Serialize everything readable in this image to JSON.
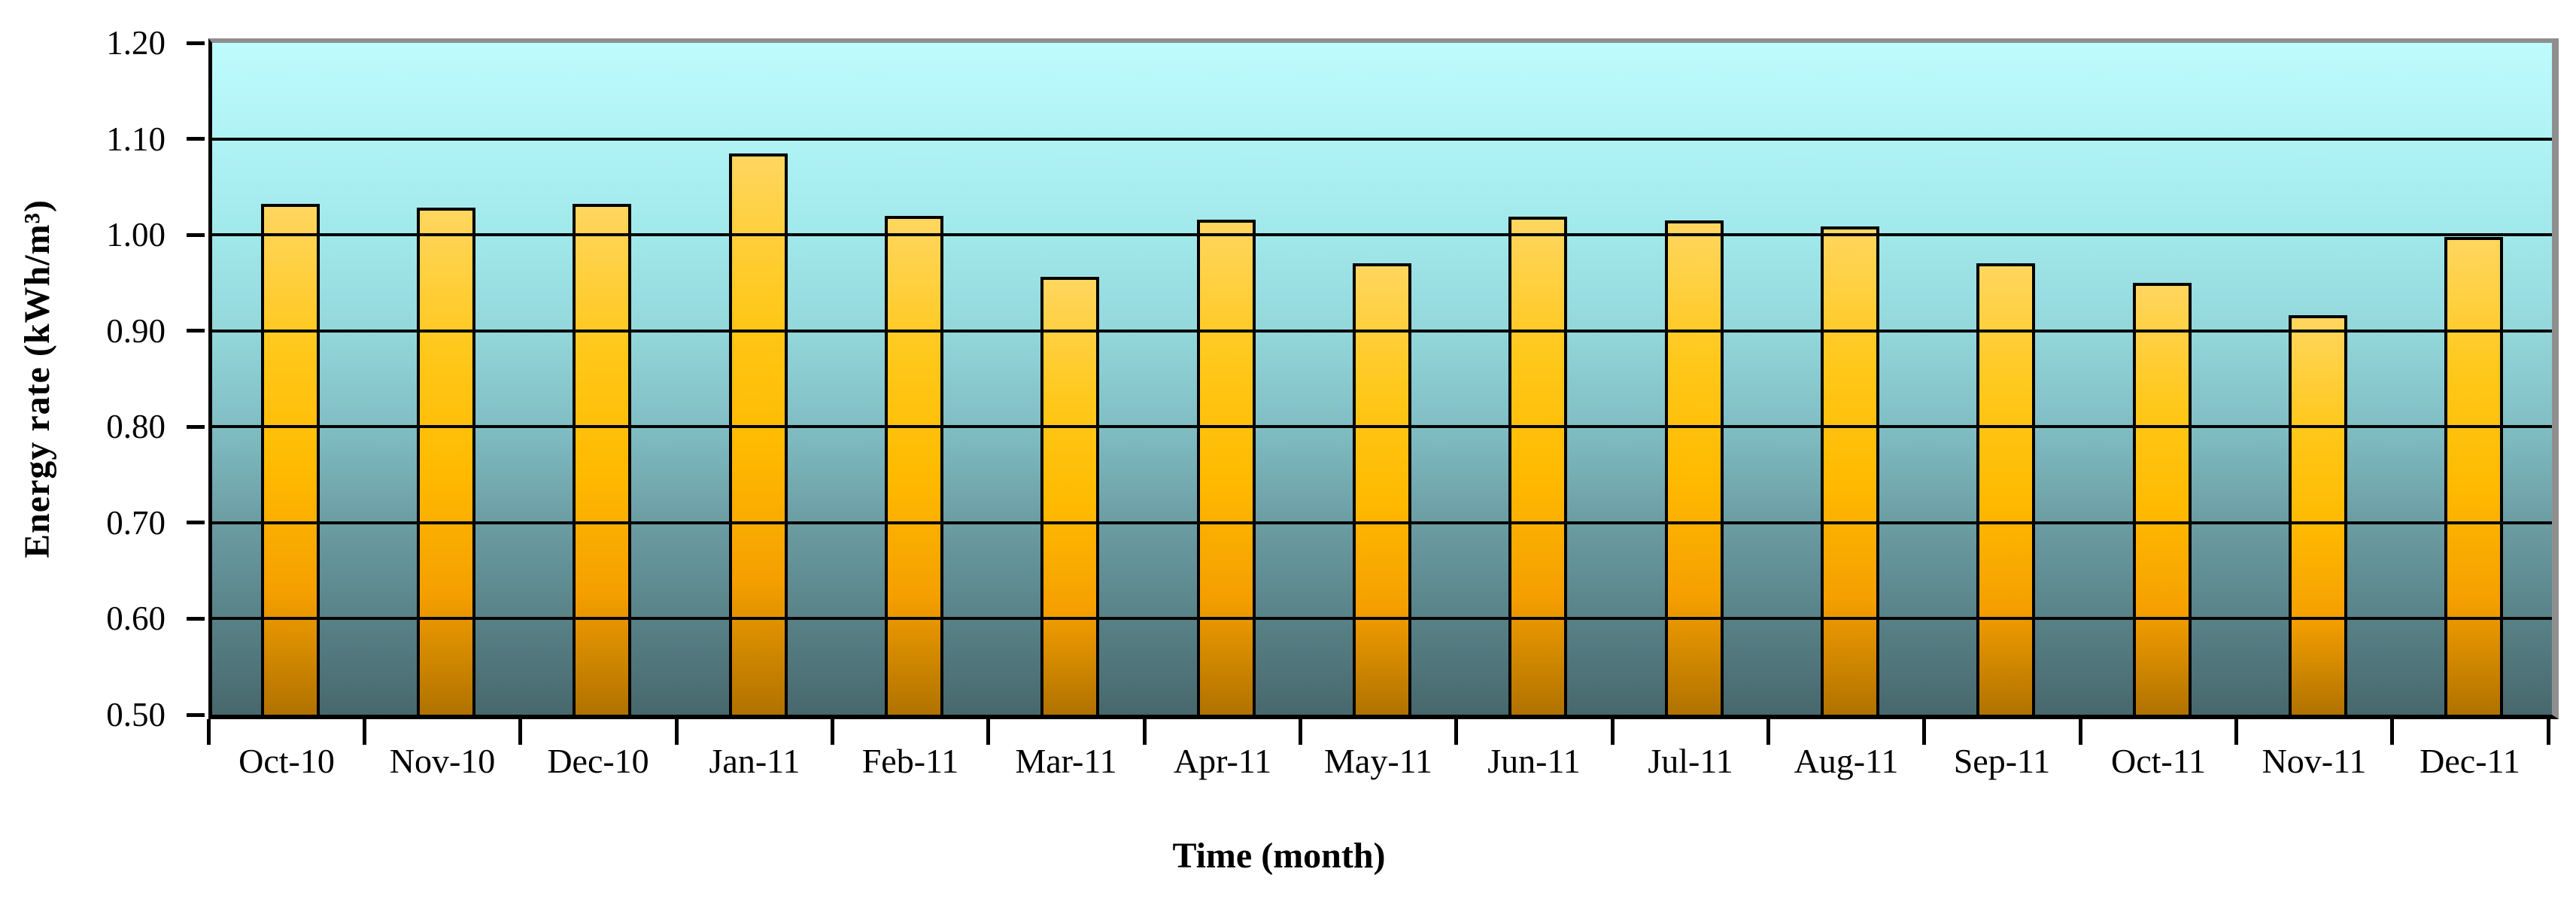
{
  "chart_data": {
    "type": "bar",
    "title": "",
    "xlabel": "Time (month)",
    "ylabel": "Energy rate (kWh/m³)",
    "categories": [
      "Oct-10",
      "Nov-10",
      "Dec-10",
      "Jan-11",
      "Feb-11",
      "Mar-11",
      "Apr-11",
      "May-11",
      "Jun-11",
      "Jul-11",
      "Aug-11",
      "Sep-11",
      "Oct-11",
      "Nov-11",
      "Dec-11"
    ],
    "values": [
      1.032,
      1.028,
      1.032,
      1.085,
      1.02,
      0.956,
      1.016,
      0.97,
      1.019,
      1.015,
      1.009,
      0.97,
      0.95,
      0.916,
      0.998
    ],
    "ylim": [
      0.5,
      1.2
    ],
    "ytick_step": 0.1,
    "ytick_labels_top_to_bottom": [
      "1.20",
      "1.10",
      "1.00",
      "0.90",
      "0.80",
      "0.70",
      "0.60",
      "0.50"
    ],
    "grid": "horizontal",
    "legend": "none"
  },
  "style": {
    "axis_color": "#000000",
    "grid_color": "#050505",
    "shadow_color": "#8F8F8F",
    "text_color": "#000000",
    "plot_gradient_top_to_bottom": [
      "#BEFBFD 0%",
      "#AFF3F5 14.3%",
      "#A1E8EB 28.6%",
      "#93D7DB 42.9%",
      "#80BEC4 57.1%",
      "#6B9DA3 71.4%",
      "#588287 85.7%",
      "#47686D 100%"
    ],
    "bar_gradient_top_to_bottom": [
      "#FFD65F 0%",
      "#FFC81A 28%",
      "#FFBA00 52%",
      "#F59F00 76%",
      "#B07200 100%"
    ]
  }
}
